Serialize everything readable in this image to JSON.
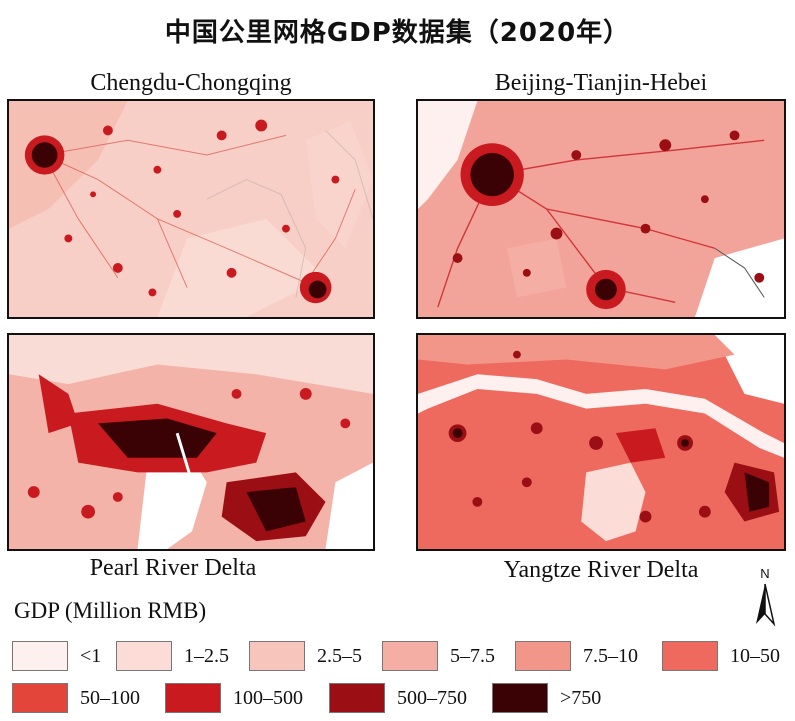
{
  "title": "中国公里网格GDP数据集（2020年）",
  "panels": [
    {
      "label": "Chengdu-Chongqing"
    },
    {
      "label": "Beijing-Tianjin-Hebei"
    },
    {
      "label": "Pearl River Delta"
    },
    {
      "label": "Yangtze River Delta"
    }
  ],
  "legend": {
    "title": "GDP (Million RMB)",
    "items": [
      {
        "label": "<1",
        "color": "#fdf0ee"
      },
      {
        "label": "1–2.5",
        "color": "#fbdcd6"
      },
      {
        "label": "2.5–5",
        "color": "#f8c5bc"
      },
      {
        "label": "5–7.5",
        "color": "#f5aea3"
      },
      {
        "label": "7.5–10",
        "color": "#f3968a"
      },
      {
        "label": "10–50",
        "color": "#ee6a5f"
      },
      {
        "label": "50–100",
        "color": "#e4453a"
      },
      {
        "label": "100–500",
        "color": "#c81a1f"
      },
      {
        "label": "500–750",
        "color": "#9b0f14"
      },
      {
        "label": ">750",
        "color": "#3a0205"
      }
    ]
  },
  "north_arrow": {
    "label": "N"
  }
}
